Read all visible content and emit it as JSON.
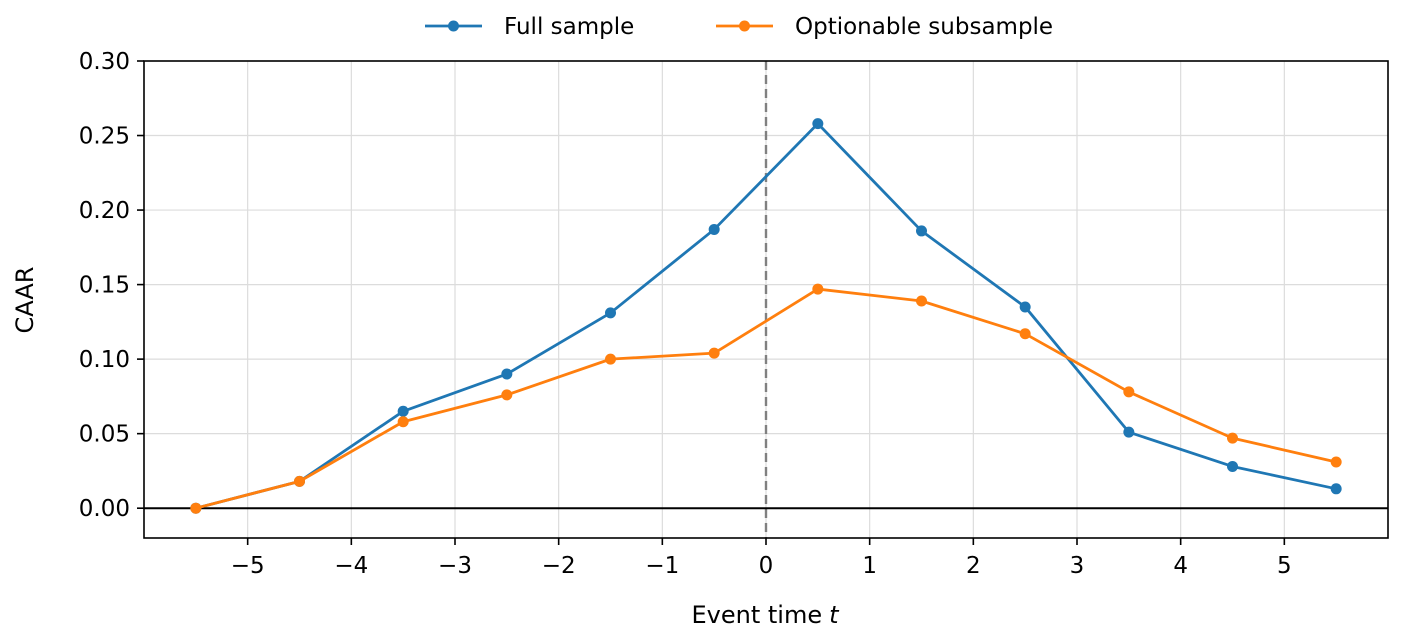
{
  "chart_data": {
    "type": "line",
    "xlabel": "Event time",
    "xlabel_var": "t",
    "ylabel": "CAAR",
    "xlim": [
      -6.0,
      6.0
    ],
    "ylim": [
      -0.02,
      0.3
    ],
    "xticks": [
      -5,
      -4,
      -3,
      -2,
      -1,
      0,
      1,
      2,
      3,
      4,
      5
    ],
    "xtick_labels": [
      "−5",
      "−4",
      "−3",
      "−2",
      "−1",
      "0",
      "1",
      "2",
      "3",
      "4",
      "5"
    ],
    "yticks": [
      0.0,
      0.05,
      0.1,
      0.15,
      0.2,
      0.25,
      0.3
    ],
    "ytick_labels": [
      "0.00",
      "0.05",
      "0.10",
      "0.15",
      "0.20",
      "0.25",
      "0.30"
    ],
    "grid": true,
    "legend": "top-center, outside",
    "reference_lines": [
      {
        "axis": "x",
        "value": 0,
        "style": "dashed",
        "color": "#808080"
      },
      {
        "axis": "y",
        "value": 0,
        "style": "solid",
        "color": "#000000"
      }
    ],
    "x": [
      -5.5,
      -4.5,
      -3.5,
      -2.5,
      -1.5,
      -0.5,
      0.5,
      1.5,
      2.5,
      3.5,
      4.5,
      5.5
    ],
    "series": [
      {
        "name": "Full sample",
        "color": "#1f77b4",
        "values": [
          0.0,
          0.018,
          0.065,
          0.09,
          0.131,
          0.187,
          0.258,
          0.186,
          0.135,
          0.051,
          0.028,
          0.013
        ]
      },
      {
        "name": "Optionable subsample",
        "color": "#ff7f0e",
        "values": [
          0.0,
          0.018,
          0.058,
          0.076,
          0.1,
          0.104,
          0.147,
          0.139,
          0.117,
          0.078,
          0.047,
          0.031
        ]
      }
    ]
  }
}
